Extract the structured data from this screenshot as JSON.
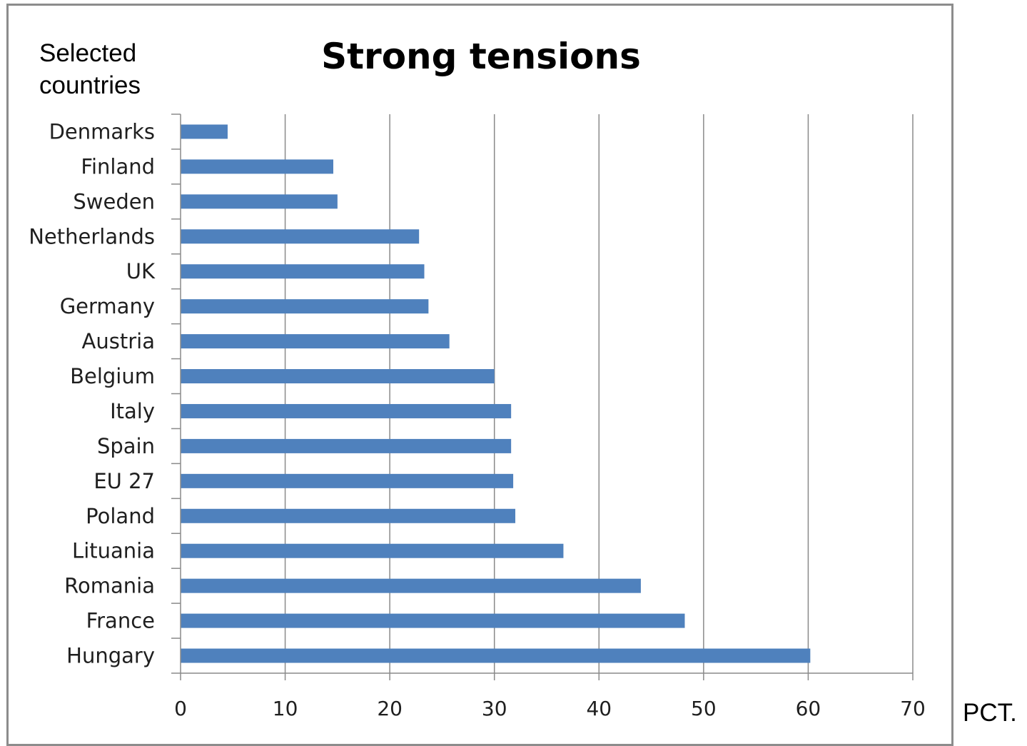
{
  "chart_data": {
    "type": "bar",
    "orientation": "horizontal",
    "title": "Strong tensions",
    "ylabel": "Selected countries",
    "xlabel": "PCT.",
    "xlim": [
      0,
      70
    ],
    "x_ticks": [
      0,
      10,
      20,
      30,
      40,
      50,
      60,
      70
    ],
    "grid": true,
    "legend": "none",
    "bar_color": "#4f81bd",
    "categories": [
      "Denmarks",
      "Finland",
      "Sweden",
      "Netherlands",
      "UK",
      "Germany",
      "Austria",
      "Belgium",
      "Italy",
      "Spain",
      "EU 27",
      "Poland",
      "Lituania",
      "Romania",
      "France",
      "Hungary"
    ],
    "values": [
      4.5,
      14.6,
      15,
      22.8,
      23.3,
      23.7,
      25.7,
      30,
      31.6,
      31.6,
      31.8,
      32,
      36.6,
      44,
      48.2,
      60.2
    ]
  }
}
